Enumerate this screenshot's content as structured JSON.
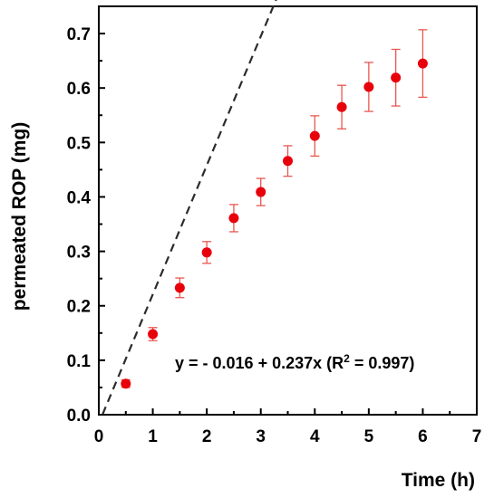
{
  "chart_data": {
    "type": "scatter",
    "xlabel": "Time (h)",
    "ylabel": "permeated ROP (mg)",
    "xlim": [
      0,
      7
    ],
    "ylim": [
      0,
      0.75
    ],
    "x_ticks": [
      "0",
      "1",
      "2",
      "3",
      "4",
      "5",
      "6",
      "7"
    ],
    "y_ticks": [
      "0.0",
      "0.1",
      "0.2",
      "0.3",
      "0.4",
      "0.5",
      "0.6",
      "0.7"
    ],
    "x_tick_values": [
      0,
      1,
      2,
      3,
      4,
      5,
      6,
      7
    ],
    "y_tick_values": [
      0,
      0.1,
      0.2,
      0.3,
      0.4,
      0.5,
      0.6,
      0.7
    ],
    "series": [
      {
        "color": "#e8000b",
        "x": [
          0.5,
          1.0,
          1.5,
          2.0,
          2.5,
          3.0,
          3.5,
          4.0,
          4.5,
          5.0,
          5.5,
          6.0
        ],
        "y": [
          0.057,
          0.148,
          0.233,
          0.298,
          0.361,
          0.409,
          0.466,
          0.512,
          0.565,
          0.602,
          0.619,
          0.645
        ],
        "error": [
          0.007,
          0.012,
          0.018,
          0.02,
          0.025,
          0.025,
          0.028,
          0.037,
          0.04,
          0.045,
          0.052,
          0.062
        ]
      }
    ],
    "fit": {
      "intercept": -0.016,
      "slope": 0.237,
      "x_range": [
        0.07,
        4.75
      ],
      "equation_prefix": "y = - 0.016 + 0.237x (R",
      "equation_sup": "2",
      "equation_suffix": " = 0.997)",
      "color": "#2b2b2b"
    },
    "grid": false,
    "legend": "none"
  }
}
